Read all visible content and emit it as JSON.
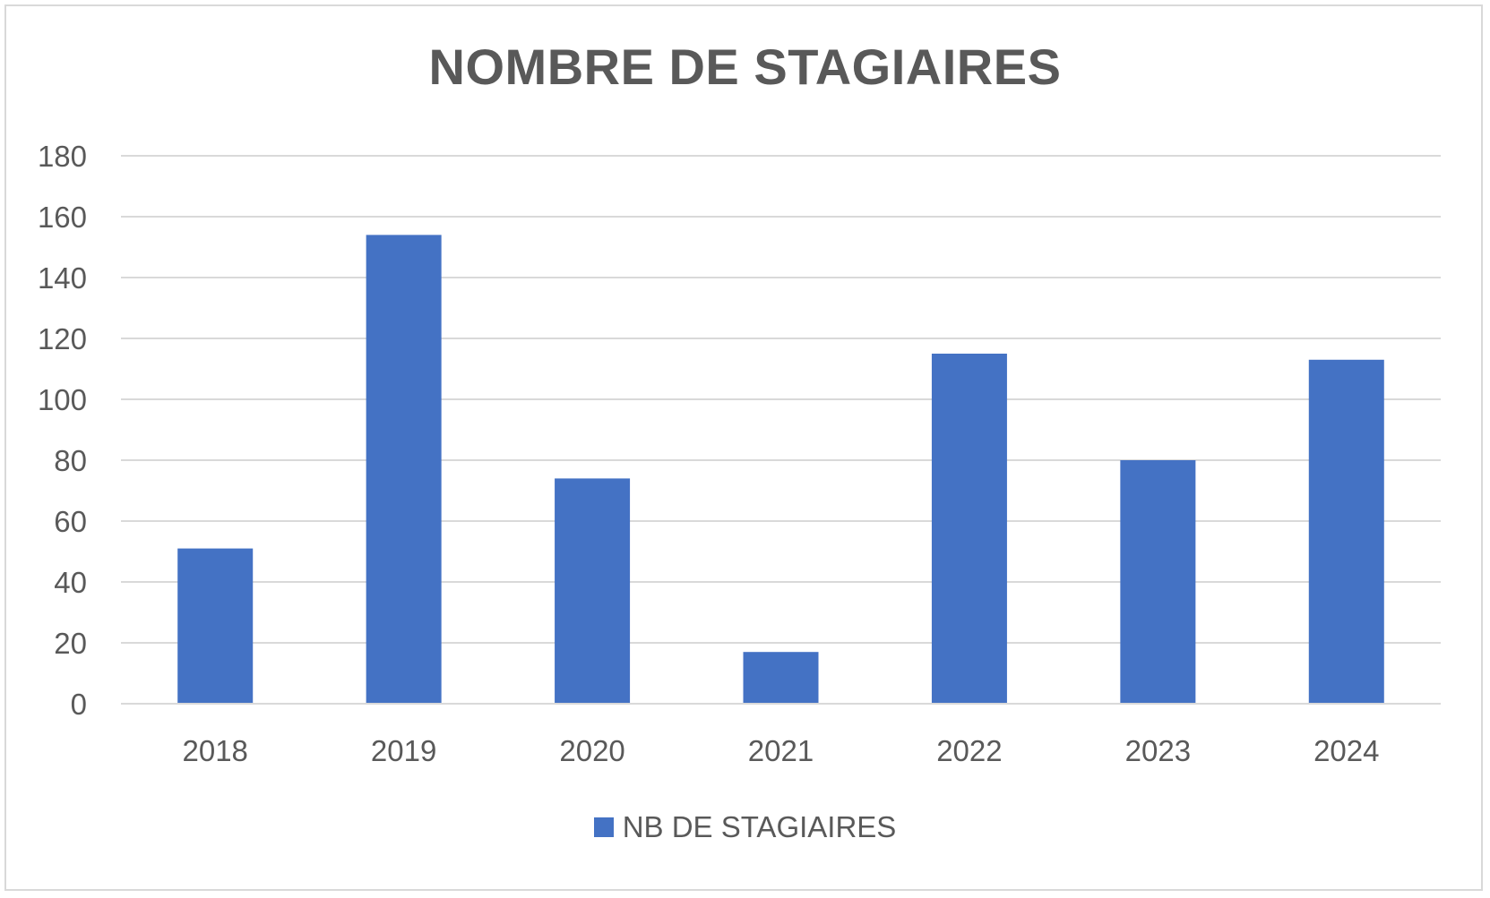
{
  "chart_data": {
    "type": "bar",
    "title": "NOMBRE DE STAGIAIRES",
    "xlabel": "",
    "ylabel": "",
    "categories": [
      "2018",
      "2019",
      "2020",
      "2021",
      "2022",
      "2023",
      "2024"
    ],
    "series": [
      {
        "name": "NB DE STAGIAIRES",
        "values": [
          51,
          154,
          74,
          17,
          115,
          80,
          113
        ],
        "color": "#4472c4"
      }
    ],
    "ylim": [
      0,
      180
    ],
    "yticks": [
      "0",
      "20",
      "40",
      "60",
      "80",
      "100",
      "120",
      "140",
      "160",
      "180"
    ],
    "grid": true,
    "legend_position": "bottom"
  }
}
